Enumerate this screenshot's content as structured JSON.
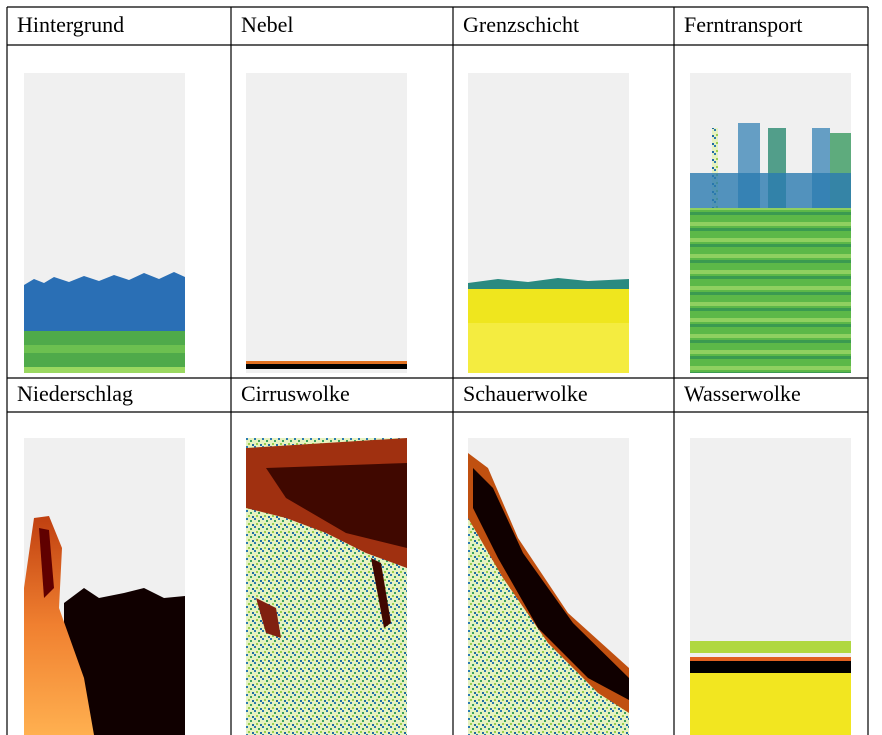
{
  "table": {
    "rows": [
      [
        "Hintergrund",
        "Nebel",
        "Grenzschicht",
        "Ferntransport"
      ],
      [
        "Niederschlag",
        "Cirruswolke",
        "Schauerwolke",
        "Wasserwolke"
      ]
    ]
  }
}
